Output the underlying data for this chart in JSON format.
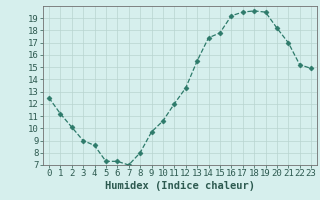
{
  "x": [
    0,
    1,
    2,
    3,
    4,
    5,
    6,
    7,
    8,
    9,
    10,
    11,
    12,
    13,
    14,
    15,
    16,
    17,
    18,
    19,
    20,
    21,
    22,
    23
  ],
  "y": [
    12.5,
    11.2,
    10.1,
    9.0,
    8.6,
    7.3,
    7.3,
    7.0,
    8.0,
    9.7,
    10.6,
    12.0,
    13.3,
    15.5,
    17.4,
    17.8,
    19.2,
    19.5,
    19.6,
    19.5,
    18.2,
    17.0,
    15.2,
    14.9
  ],
  "xlabel": "Humidex (Indice chaleur)",
  "xlim": [
    -0.5,
    23.5
  ],
  "ylim": [
    7,
    20
  ],
  "xtick_labels": [
    "0",
    "1",
    "2",
    "3",
    "4",
    "5",
    "6",
    "7",
    "8",
    "9",
    "10",
    "11",
    "12",
    "13",
    "14",
    "15",
    "16",
    "17",
    "18",
    "19",
    "20",
    "21",
    "22",
    "23"
  ],
  "ytick_labels": [
    "7",
    "8",
    "9",
    "10",
    "11",
    "12",
    "13",
    "14",
    "15",
    "16",
    "17",
    "18",
    "19"
  ],
  "line_color": "#2d7a6a",
  "marker": "D",
  "marker_size": 2.5,
  "bg_color": "#d6efed",
  "grid_color": "#b8d4d0",
  "axis_color": "#707070",
  "label_color": "#2d5a50",
  "xlabel_fontsize": 7.5,
  "tick_fontsize": 6.5,
  "line_width": 0.9
}
